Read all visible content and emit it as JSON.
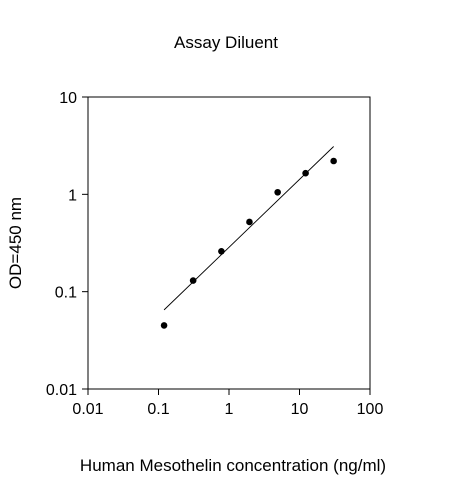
{
  "chart_data": {
    "type": "scatter",
    "title": "Assay Diluent",
    "xlabel": "Human Mesothelin concentration (ng/ml)",
    "ylabel": "OD=450 nm",
    "x_scale": "log",
    "y_scale": "log",
    "xlim": [
      0.01,
      100
    ],
    "ylim": [
      0.01,
      10
    ],
    "x_ticks": [
      0.01,
      0.1,
      1,
      10,
      100
    ],
    "x_tick_labels": [
      "0.01",
      "0.1",
      "1",
      "10",
      "100"
    ],
    "y_ticks": [
      0.01,
      0.1,
      1,
      10
    ],
    "y_tick_labels": [
      "0.01",
      "0.1",
      "1",
      "10"
    ],
    "grid": false,
    "legend": "none",
    "series": [
      {
        "points": [
          {
            "x": 0.12,
            "y": 0.045
          },
          {
            "x": 0.31,
            "y": 0.13
          },
          {
            "x": 0.78,
            "y": 0.26
          },
          {
            "x": 1.95,
            "y": 0.52
          },
          {
            "x": 4.9,
            "y": 1.05
          },
          {
            "x": 12.2,
            "y": 1.65
          },
          {
            "x": 30.5,
            "y": 2.2
          }
        ],
        "marker_color": "#000000"
      }
    ],
    "fit_line": {
      "start": {
        "x": 0.12,
        "y": 0.065
      },
      "end": {
        "x": 30.5,
        "y": 3.1
      },
      "color": "#000000"
    }
  }
}
